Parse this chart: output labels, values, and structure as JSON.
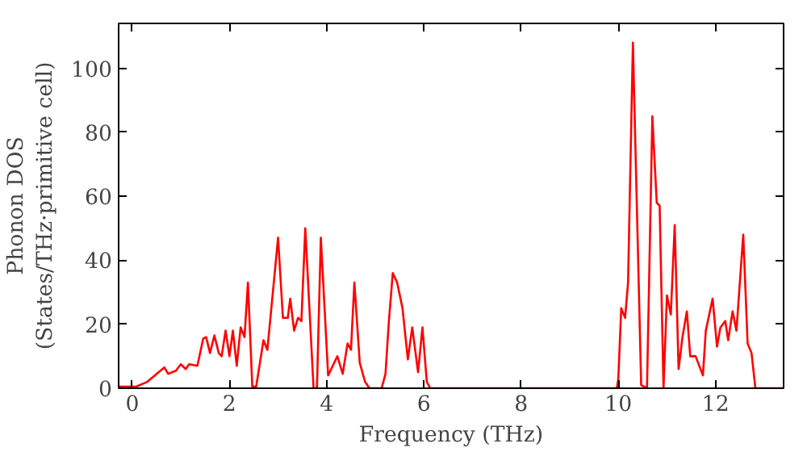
{
  "chart_data": {
    "type": "line",
    "xlabel": "Frequency (THz)",
    "ylabel": "Phonon DOS\n(States/THz·primitive cell)",
    "xlim": [
      -0.28,
      13.4
    ],
    "ylim": [
      0,
      114
    ],
    "xticks": [
      0,
      2,
      4,
      6,
      8,
      10,
      12
    ],
    "yticks": [
      0,
      20,
      40,
      60,
      80,
      100
    ],
    "grid": false,
    "series": [
      {
        "color": "#ff0000",
        "x": [
          -0.27,
          0.08,
          0.31,
          0.66,
          0.74,
          0.9,
          1.0,
          1.1,
          1.17,
          1.34,
          1.46,
          1.52,
          1.6,
          1.69,
          1.78,
          1.84,
          1.92,
          2.0,
          2.07,
          2.15,
          2.23,
          2.31,
          2.38,
          2.47,
          2.55,
          2.7,
          2.78,
          3.0,
          3.1,
          3.2,
          3.25,
          3.33,
          3.41,
          3.48,
          3.56,
          3.73,
          3.8,
          3.88,
          4.03,
          4.22,
          4.33,
          4.43,
          4.5,
          4.57,
          4.68,
          4.79,
          4.88,
          5.13,
          5.21,
          5.28,
          5.36,
          5.45,
          5.56,
          5.67,
          5.76,
          5.88,
          5.97,
          6.06,
          6.13,
          9.97,
          10.0,
          10.06,
          10.14,
          10.2,
          10.3,
          10.47,
          10.59,
          10.7,
          10.79,
          10.85,
          10.93,
          11.0,
          11.08,
          11.16,
          11.24,
          11.32,
          11.41,
          11.48,
          11.59,
          11.74,
          11.8,
          11.94,
          12.03,
          12.1,
          12.2,
          12.26,
          12.35,
          12.43,
          12.57,
          12.66,
          12.74,
          12.82,
          13.4
        ],
        "values": [
          0.5,
          0.5,
          2,
          6.5,
          4.5,
          5.5,
          7.5,
          6,
          7.5,
          7,
          15.5,
          16,
          11,
          16.5,
          11,
          10,
          18,
          10,
          18,
          7,
          19,
          16,
          33,
          0.5,
          0.5,
          15,
          12,
          47,
          22,
          22,
          28,
          18,
          22,
          21,
          50,
          0,
          0,
          47,
          4,
          10,
          4.5,
          14,
          12,
          33,
          8,
          2,
          0,
          0,
          4.5,
          21,
          36,
          33,
          25,
          9,
          19,
          5,
          19,
          2,
          0,
          0,
          3,
          25,
          22,
          33,
          108,
          1,
          0,
          85,
          58,
          57,
          0,
          29,
          23,
          51,
          6,
          16,
          24,
          10,
          10,
          4,
          18,
          28,
          13,
          19,
          21,
          15,
          24,
          18,
          48,
          14,
          11,
          0,
          0
        ]
      }
    ]
  }
}
